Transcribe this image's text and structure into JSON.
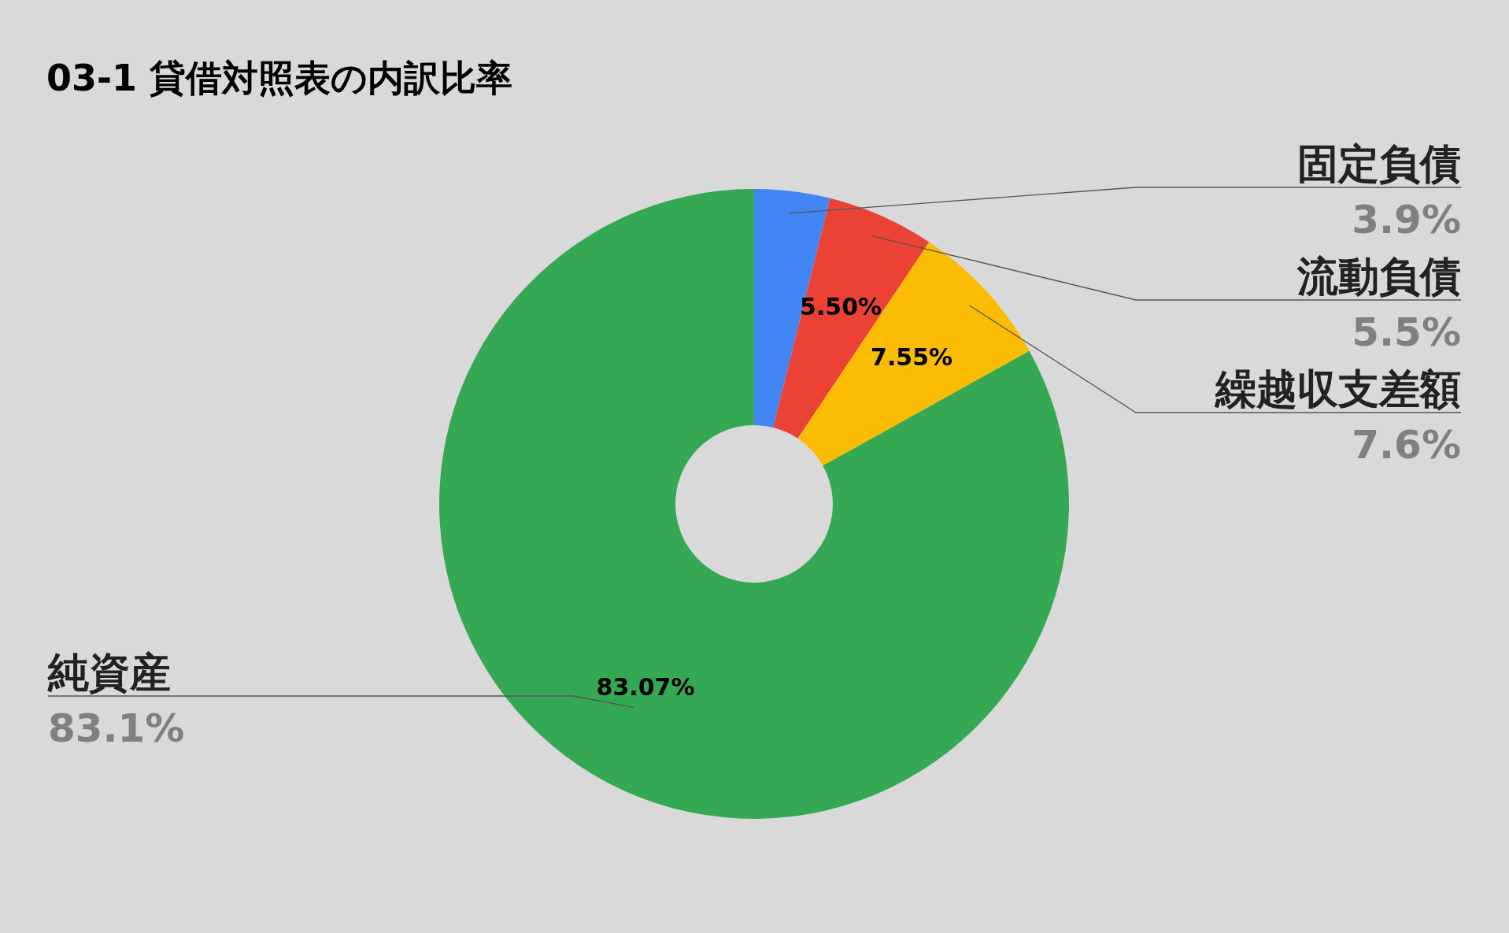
{
  "chart_data": {
    "type": "donut",
    "title": "03-1 貸借対照表の内訳比率",
    "categories": [
      "固定負債",
      "流動負債",
      "繰越収支差額",
      "純資産"
    ],
    "values": [
      3.88,
      5.5,
      7.55,
      83.07
    ],
    "colors": [
      "#4285f4",
      "#ea4335",
      "#fbbc04",
      "#34a853"
    ],
    "value_labels": [
      null,
      "5.50%",
      "7.55%",
      "83.07%"
    ],
    "annotations": [
      "3.9%",
      "5.5%",
      "7.6%",
      "83.1%"
    ]
  }
}
